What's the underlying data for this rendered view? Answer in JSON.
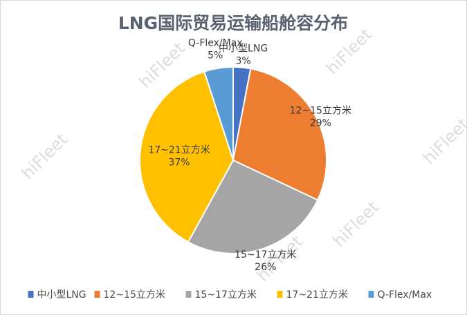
{
  "chart_data": {
    "type": "pie",
    "title": "LNG国际贸易运输船舱容分布",
    "categories": [
      "中小型LNG",
      "12~15立方米",
      "15~17立方米",
      "17~21立方米",
      "Q-Flex/Max"
    ],
    "values": [
      3,
      29,
      26,
      37,
      5
    ],
    "value_labels": [
      "3%",
      "29%",
      "26%",
      "37%",
      "5%"
    ],
    "colors": [
      "#4472C4",
      "#ED7D31",
      "#A5A5A5",
      "#FFC000",
      "#5B9BD5"
    ],
    "legend_position": "bottom",
    "start": "12 o'clock, clockwise"
  },
  "watermark": "hiFleet"
}
